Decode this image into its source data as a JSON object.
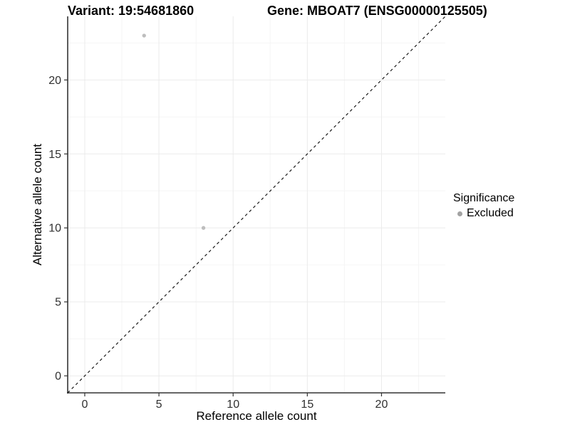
{
  "header": {
    "variant_title": "Variant: 19:54681860",
    "gene_title": "Gene: MBOAT7 (ENSG00000125505)"
  },
  "legend": {
    "title": "Significance",
    "items": [
      {
        "label": "Excluded",
        "marker_color": "#a3a3a3"
      }
    ]
  },
  "chart_data": {
    "type": "scatter",
    "xlabel": "Reference allele count",
    "ylabel": "Alternative allele count",
    "x_ticks": [
      0,
      5,
      10,
      15,
      20
    ],
    "y_ticks": [
      0,
      5,
      10,
      15,
      20
    ],
    "xlim": [
      -1.15,
      24.3
    ],
    "ylim": [
      -1.15,
      24.3
    ],
    "grid": true,
    "legend_position": "right",
    "series": [
      {
        "name": "Excluded",
        "color": "#bebebe",
        "points": [
          {
            "x": 4,
            "y": 23
          },
          {
            "x": 8,
            "y": 10
          }
        ]
      }
    ],
    "reference_line": {
      "type": "identity",
      "style": "dashed",
      "color": "#1a1a1a"
    },
    "colors": {
      "grid_major": "#ebebeb",
      "grid_minor": "#f5f5f5",
      "axis_line": "#333333",
      "tick_mark": "#333333",
      "tick_label": "#303030",
      "axis_title": "#000000"
    }
  }
}
